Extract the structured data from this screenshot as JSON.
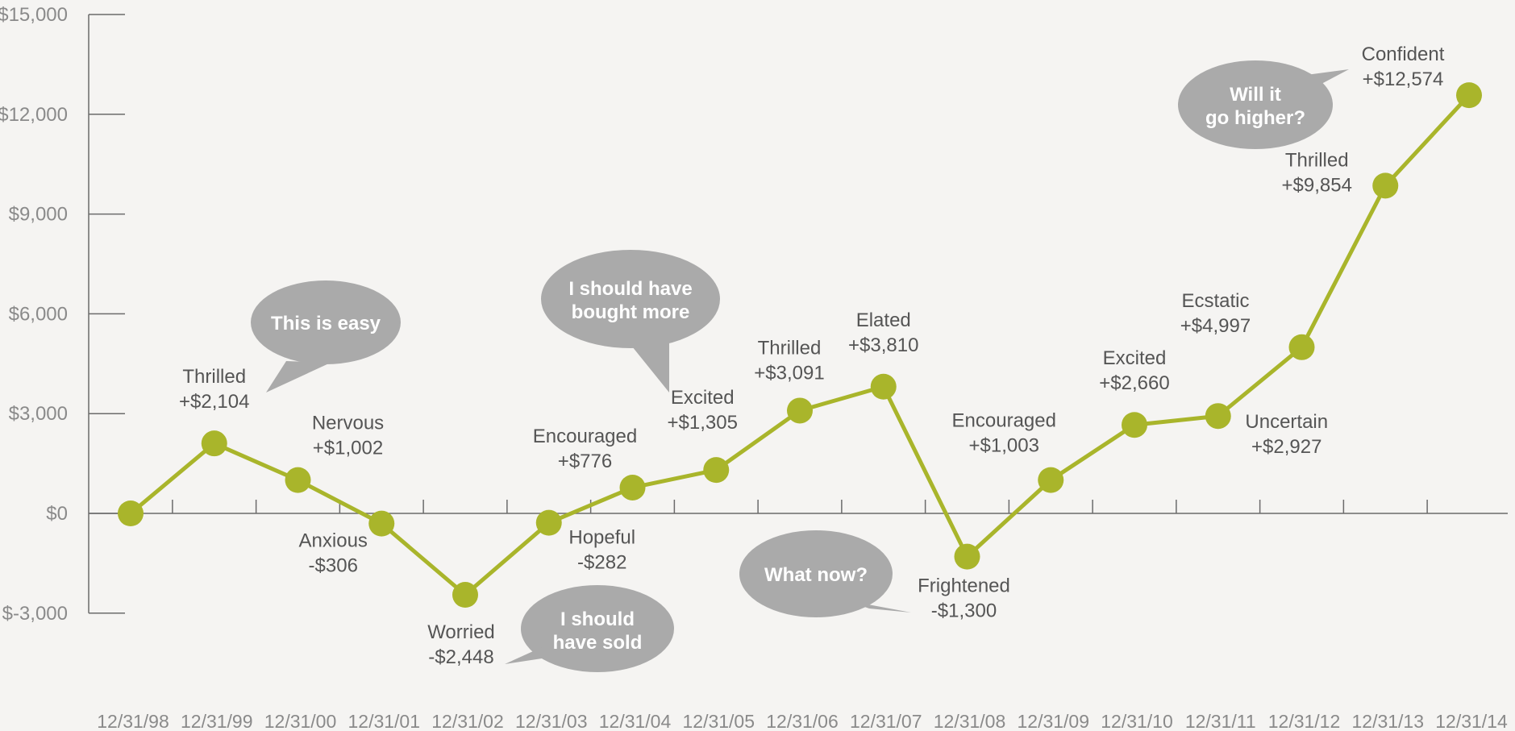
{
  "chart_data": {
    "type": "line",
    "title": "",
    "xlabel": "",
    "ylabel": "",
    "ylim": [
      -3000,
      15000
    ],
    "yticks": [
      15000,
      12000,
      9000,
      6000,
      3000,
      0,
      -3000
    ],
    "ytick_labels": [
      "$15,000",
      "$12,000",
      "$9,000",
      "$6,000",
      "$3,000",
      "$0",
      "$-3,000"
    ],
    "grid": false,
    "x": [
      "12/31/98",
      "12/31/99",
      "12/31/00",
      "12/31/01",
      "12/31/02",
      "12/31/03",
      "12/31/04",
      "12/31/05",
      "12/31/06",
      "12/31/07",
      "12/31/08",
      "12/31/09",
      "12/31/10",
      "12/31/11",
      "12/31/12",
      "12/31/13",
      "12/31/14"
    ],
    "series": [
      {
        "values": [
          0,
          2104,
          1002,
          -306,
          -2448,
          -282,
          776,
          1305,
          3091,
          3810,
          -1300,
          1003,
          2660,
          2927,
          4997,
          9854,
          12574
        ],
        "color": "#a9b52b"
      }
    ],
    "point_labels": [
      null,
      {
        "mood": "Thrilled",
        "amount": "+$2,104",
        "pos": "above"
      },
      {
        "mood": "Nervous",
        "amount": "+$1,002",
        "pos": "upper-right"
      },
      {
        "mood": "Anxious",
        "amount": "-$306",
        "pos": "lower-left"
      },
      {
        "mood": "Worried",
        "amount": "-$2,448",
        "pos": "below"
      },
      {
        "mood": "Hopeful",
        "amount": "-$282",
        "pos": "lower-right"
      },
      {
        "mood": "Encouraged",
        "amount": "+$776",
        "pos": "upper-left"
      },
      {
        "mood": "Excited",
        "amount": "+$1,305",
        "pos": "upper-left"
      },
      {
        "mood": "Thrilled",
        "amount": "+$3,091",
        "pos": "upper-left"
      },
      {
        "mood": "Elated",
        "amount": "+$3,810",
        "pos": "above"
      },
      {
        "mood": "Frightened",
        "amount": "-$1,300",
        "pos": "lower-left"
      },
      {
        "mood": "Encouraged",
        "amount": "+$1,003",
        "pos": "upper-left"
      },
      {
        "mood": "Excited",
        "amount": "+$2,660",
        "pos": "above"
      },
      {
        "mood": "Uncertain",
        "amount": "+$2,927",
        "pos": "lower-right"
      },
      {
        "mood": "Ecstatic",
        "amount": "+$4,997",
        "pos": "upper-left"
      },
      {
        "mood": "Thrilled",
        "amount": "+$9,854",
        "pos": "upper-left"
      },
      {
        "mood": "Confident",
        "amount": "+$12,574",
        "pos": "upper-left"
      }
    ],
    "annotations": [
      {
        "text": [
          "This is easy"
        ],
        "near": "12/31/99",
        "color": "#aaaaaa"
      },
      {
        "text": [
          "I should have",
          "bought more"
        ],
        "near": "12/31/04",
        "color": "#aaaaaa"
      },
      {
        "text": [
          "I should",
          "have sold"
        ],
        "near": "12/31/03",
        "color": "#aaaaaa"
      },
      {
        "text": [
          "What now?"
        ],
        "near": "12/31/08",
        "color": "#aaaaaa"
      },
      {
        "text": [
          "Will it",
          "go higher?"
        ],
        "near": "12/31/13",
        "color": "#aaaaaa"
      }
    ],
    "colors": {
      "line": "#a9b52b",
      "axis": "#6b6b6b",
      "bubble": "#aaaaaa"
    }
  }
}
